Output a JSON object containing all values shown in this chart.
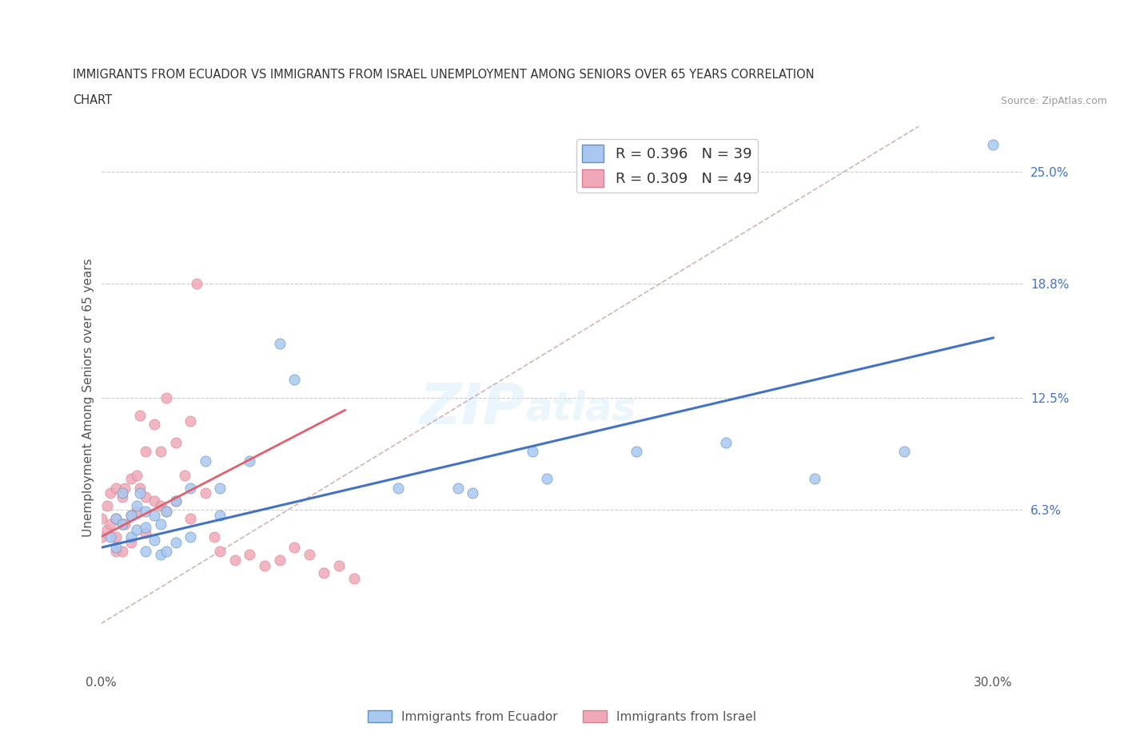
{
  "title_line1": "IMMIGRANTS FROM ECUADOR VS IMMIGRANTS FROM ISRAEL UNEMPLOYMENT AMONG SENIORS OVER 65 YEARS CORRELATION",
  "title_line2": "CHART",
  "source": "Source: ZipAtlas.com",
  "ylabel": "Unemployment Among Seniors over 65 years",
  "x_tick_positions": [
    0.0,
    0.05,
    0.1,
    0.15,
    0.2,
    0.25,
    0.3
  ],
  "x_tick_labels": [
    "0.0%",
    "",
    "",
    "",
    "",
    "",
    "30.0%"
  ],
  "y_tick_labels_right": [
    "6.3%",
    "12.5%",
    "18.8%",
    "25.0%"
  ],
  "y_ticks_right": [
    0.063,
    0.125,
    0.188,
    0.25
  ],
  "xlim": [
    0.0,
    0.31
  ],
  "ylim": [
    -0.025,
    0.275
  ],
  "legend1_label": "R = 0.396   N = 39",
  "legend2_label": "R = 0.309   N = 49",
  "legend_label1": "Immigrants from Ecuador",
  "legend_label2": "Immigrants from Israel",
  "color_ecuador": "#a8c8f0",
  "color_israel": "#f0a8b8",
  "color_ecuador_line": "#4472c4",
  "color_israel_line": "#e06070",
  "color_diag": "#c8a0a0",
  "ecuador_scatter_x": [
    0.003,
    0.005,
    0.005,
    0.007,
    0.007,
    0.01,
    0.01,
    0.012,
    0.012,
    0.013,
    0.015,
    0.015,
    0.015,
    0.018,
    0.018,
    0.02,
    0.02,
    0.022,
    0.022,
    0.025,
    0.025,
    0.03,
    0.03,
    0.035,
    0.04,
    0.04,
    0.05,
    0.06,
    0.065,
    0.1,
    0.12,
    0.125,
    0.145,
    0.15,
    0.18,
    0.21,
    0.24,
    0.27,
    0.3
  ],
  "ecuador_scatter_y": [
    0.048,
    0.058,
    0.042,
    0.072,
    0.055,
    0.06,
    0.048,
    0.065,
    0.052,
    0.072,
    0.062,
    0.053,
    0.04,
    0.06,
    0.046,
    0.055,
    0.038,
    0.062,
    0.04,
    0.068,
    0.045,
    0.075,
    0.048,
    0.09,
    0.075,
    0.06,
    0.09,
    0.155,
    0.135,
    0.075,
    0.075,
    0.072,
    0.095,
    0.08,
    0.095,
    0.1,
    0.08,
    0.095,
    0.265
  ],
  "israel_scatter_x": [
    0.0,
    0.0,
    0.002,
    0.002,
    0.003,
    0.003,
    0.005,
    0.005,
    0.005,
    0.005,
    0.007,
    0.007,
    0.007,
    0.008,
    0.008,
    0.01,
    0.01,
    0.01,
    0.012,
    0.012,
    0.013,
    0.013,
    0.015,
    0.015,
    0.015,
    0.018,
    0.018,
    0.02,
    0.02,
    0.022,
    0.022,
    0.025,
    0.025,
    0.028,
    0.03,
    0.03,
    0.032,
    0.035,
    0.038,
    0.04,
    0.045,
    0.05,
    0.055,
    0.06,
    0.065,
    0.07,
    0.075,
    0.08,
    0.085
  ],
  "israel_scatter_y": [
    0.058,
    0.048,
    0.065,
    0.052,
    0.072,
    0.055,
    0.075,
    0.058,
    0.048,
    0.04,
    0.07,
    0.055,
    0.04,
    0.075,
    0.055,
    0.08,
    0.06,
    0.045,
    0.082,
    0.062,
    0.115,
    0.075,
    0.095,
    0.07,
    0.05,
    0.11,
    0.068,
    0.095,
    0.065,
    0.125,
    0.062,
    0.1,
    0.068,
    0.082,
    0.112,
    0.058,
    0.188,
    0.072,
    0.048,
    0.04,
    0.035,
    0.038,
    0.032,
    0.035,
    0.042,
    0.038,
    0.028,
    0.032,
    0.025
  ],
  "ecuador_line_x": [
    0.0,
    0.3
  ],
  "ecuador_line_y": [
    0.042,
    0.158
  ],
  "israel_line_x": [
    0.0,
    0.082
  ],
  "israel_line_y": [
    0.048,
    0.118
  ],
  "diag_line_x": [
    0.0,
    0.275
  ],
  "diag_line_y": [
    0.0,
    0.275
  ],
  "watermark_top": "ZIP",
  "watermark_bot": "atlas",
  "background_color": "#ffffff",
  "grid_color": "#cccccc"
}
